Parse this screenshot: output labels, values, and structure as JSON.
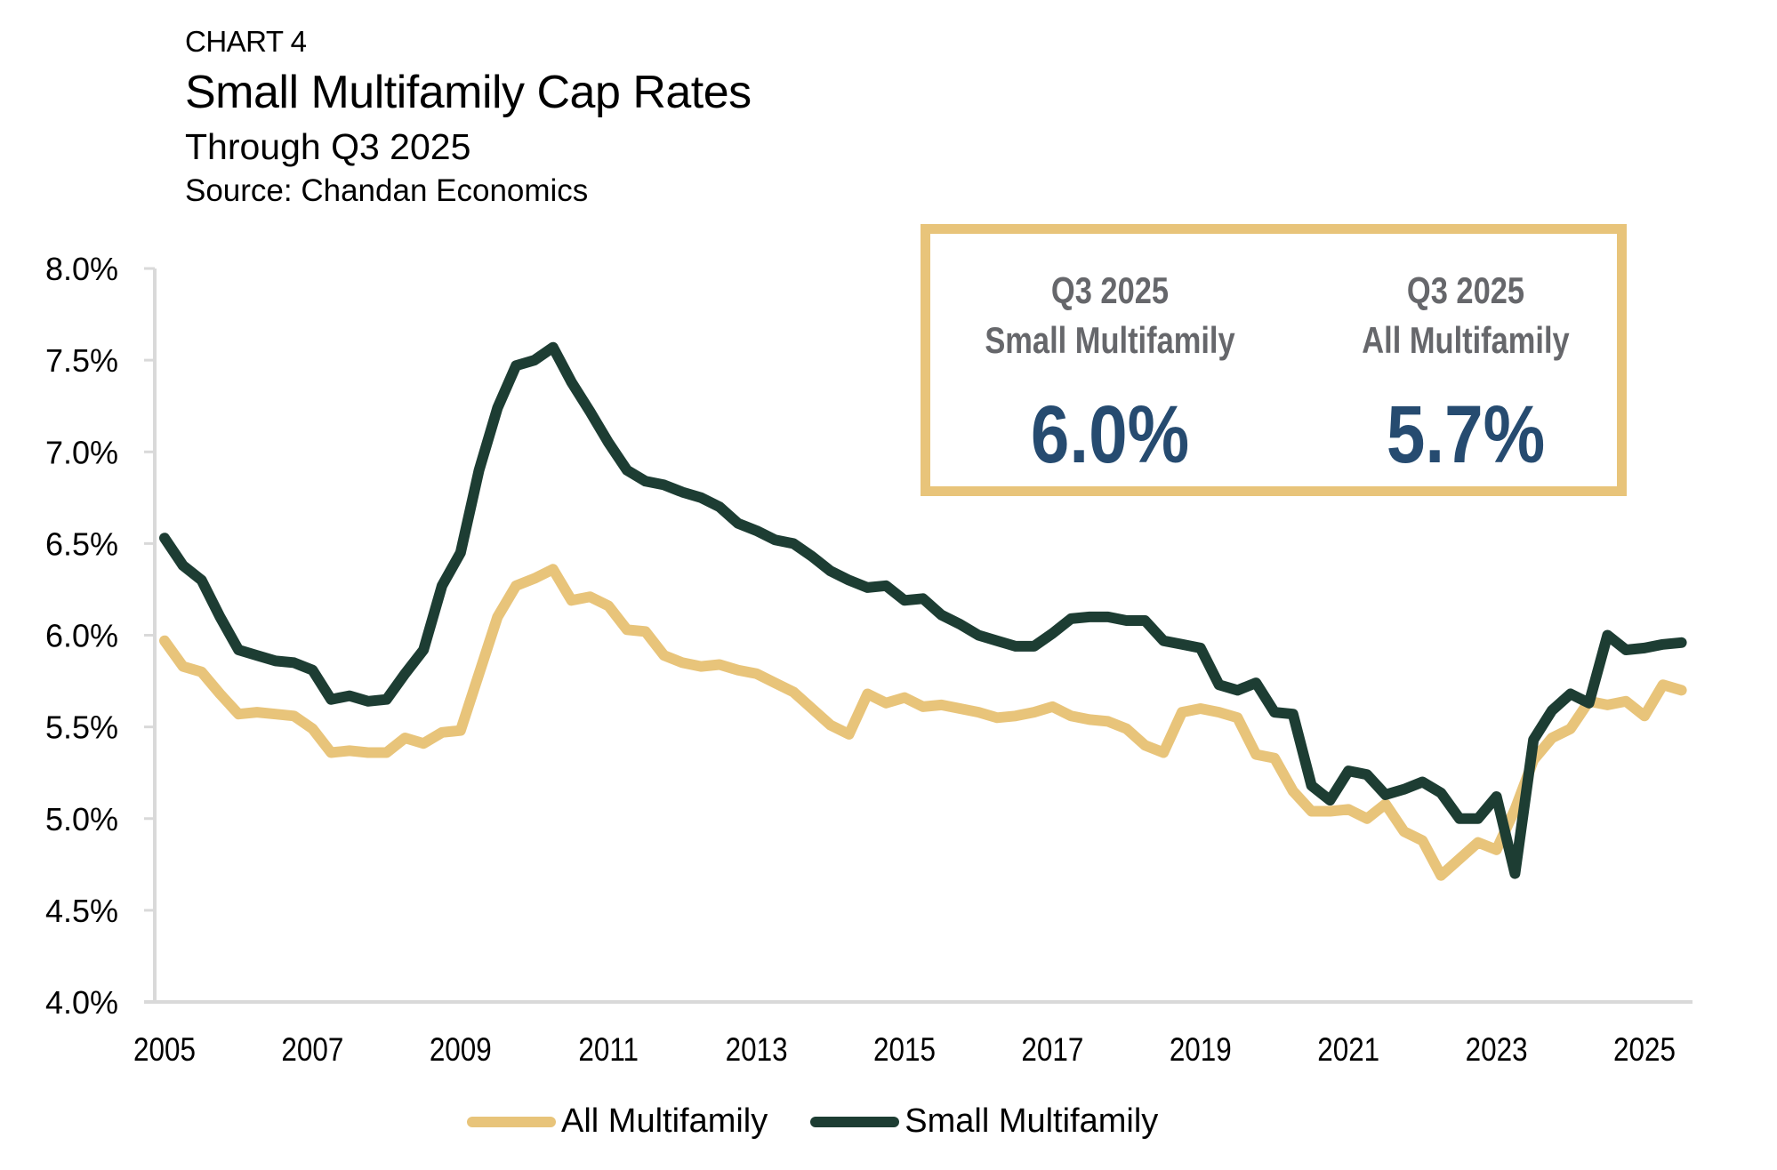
{
  "header": {
    "label": "CHART 4",
    "title": "Small Multifamily Cap Rates",
    "subtitle": "Through Q3 2025",
    "source": "Source: Chandan Economics"
  },
  "kpis": {
    "small": {
      "period": "Q3 2025",
      "name": "Small Multifamily",
      "value": "6.0%"
    },
    "all": {
      "period": "Q3 2025",
      "name": "All Multifamily",
      "value": "5.7%"
    }
  },
  "colors": {
    "all": "#e8c47a",
    "small": "#1d3d33",
    "kpi_value": "#264b70",
    "kpi_label": "#66676b",
    "axis": "#d9d9d9"
  },
  "chart_data": {
    "type": "line",
    "title": "Small Multifamily Cap Rates",
    "subtitle": "Through Q3 2025",
    "xlabel": "",
    "ylabel": "",
    "frequency": "quarterly",
    "x_start": "2005 Q1",
    "x_end": "2025 Q3",
    "ylim": [
      4.0,
      8.0
    ],
    "yticks": [
      "8.0%",
      "7.5%",
      "7.0%",
      "6.5%",
      "6.0%",
      "5.5%",
      "5.0%",
      "4.5%",
      "4.0%"
    ],
    "ytick_values": [
      8.0,
      7.5,
      7.0,
      6.5,
      6.0,
      5.5,
      5.0,
      4.5,
      4.0
    ],
    "xticks": [
      "2005",
      "2007",
      "2009",
      "2011",
      "2013",
      "2015",
      "2017",
      "2019",
      "2021",
      "2023",
      "2025"
    ],
    "grid": false,
    "legend_position": "bottom",
    "series": [
      {
        "name": "All Multifamily",
        "color": "#e8c47a",
        "values": [
          5.97,
          5.83,
          5.8,
          5.68,
          5.57,
          5.58,
          5.57,
          5.56,
          5.49,
          5.36,
          5.37,
          5.36,
          5.36,
          5.44,
          5.41,
          5.47,
          5.48,
          5.79,
          6.1,
          6.27,
          6.31,
          6.36,
          6.19,
          6.21,
          6.16,
          6.03,
          6.02,
          5.89,
          5.85,
          5.83,
          5.84,
          5.81,
          5.79,
          5.74,
          5.69,
          5.6,
          5.51,
          5.46,
          5.68,
          5.63,
          5.66,
          5.61,
          5.62,
          5.6,
          5.58,
          5.55,
          5.56,
          5.58,
          5.61,
          5.56,
          5.54,
          5.53,
          5.49,
          5.4,
          5.36,
          5.58,
          5.6,
          5.58,
          5.55,
          5.35,
          5.33,
          5.15,
          5.04,
          5.04,
          5.05,
          5.0,
          5.08,
          4.93,
          4.88,
          4.69,
          4.78,
          4.87,
          4.83,
          5.05,
          5.32,
          5.44,
          5.49,
          5.64,
          5.62,
          5.64,
          5.56,
          5.73,
          5.7
        ]
      },
      {
        "name": "Small Multifamily",
        "color": "#1d3d33",
        "values": [
          6.53,
          6.38,
          6.3,
          6.1,
          5.92,
          5.89,
          5.86,
          5.85,
          5.81,
          5.65,
          5.67,
          5.64,
          5.65,
          5.79,
          5.92,
          6.27,
          6.45,
          6.9,
          7.24,
          7.47,
          7.5,
          7.57,
          7.38,
          7.22,
          7.05,
          6.9,
          6.84,
          6.82,
          6.78,
          6.75,
          6.7,
          6.61,
          6.57,
          6.52,
          6.5,
          6.43,
          6.35,
          6.3,
          6.26,
          6.27,
          6.19,
          6.2,
          6.11,
          6.06,
          6.0,
          5.97,
          5.94,
          5.94,
          6.01,
          6.09,
          6.1,
          6.1,
          6.08,
          6.08,
          5.97,
          5.95,
          5.93,
          5.73,
          5.7,
          5.74,
          5.58,
          5.57,
          5.18,
          5.1,
          5.26,
          5.24,
          5.13,
          5.16,
          5.2,
          5.14,
          5.0,
          5.0,
          5.12,
          4.7,
          5.43,
          5.59,
          5.68,
          5.63,
          6.0,
          5.92,
          5.93,
          5.95,
          5.96
        ]
      }
    ]
  },
  "legend": [
    {
      "label": "All Multifamily"
    },
    {
      "label": "Small Multifamily"
    }
  ]
}
